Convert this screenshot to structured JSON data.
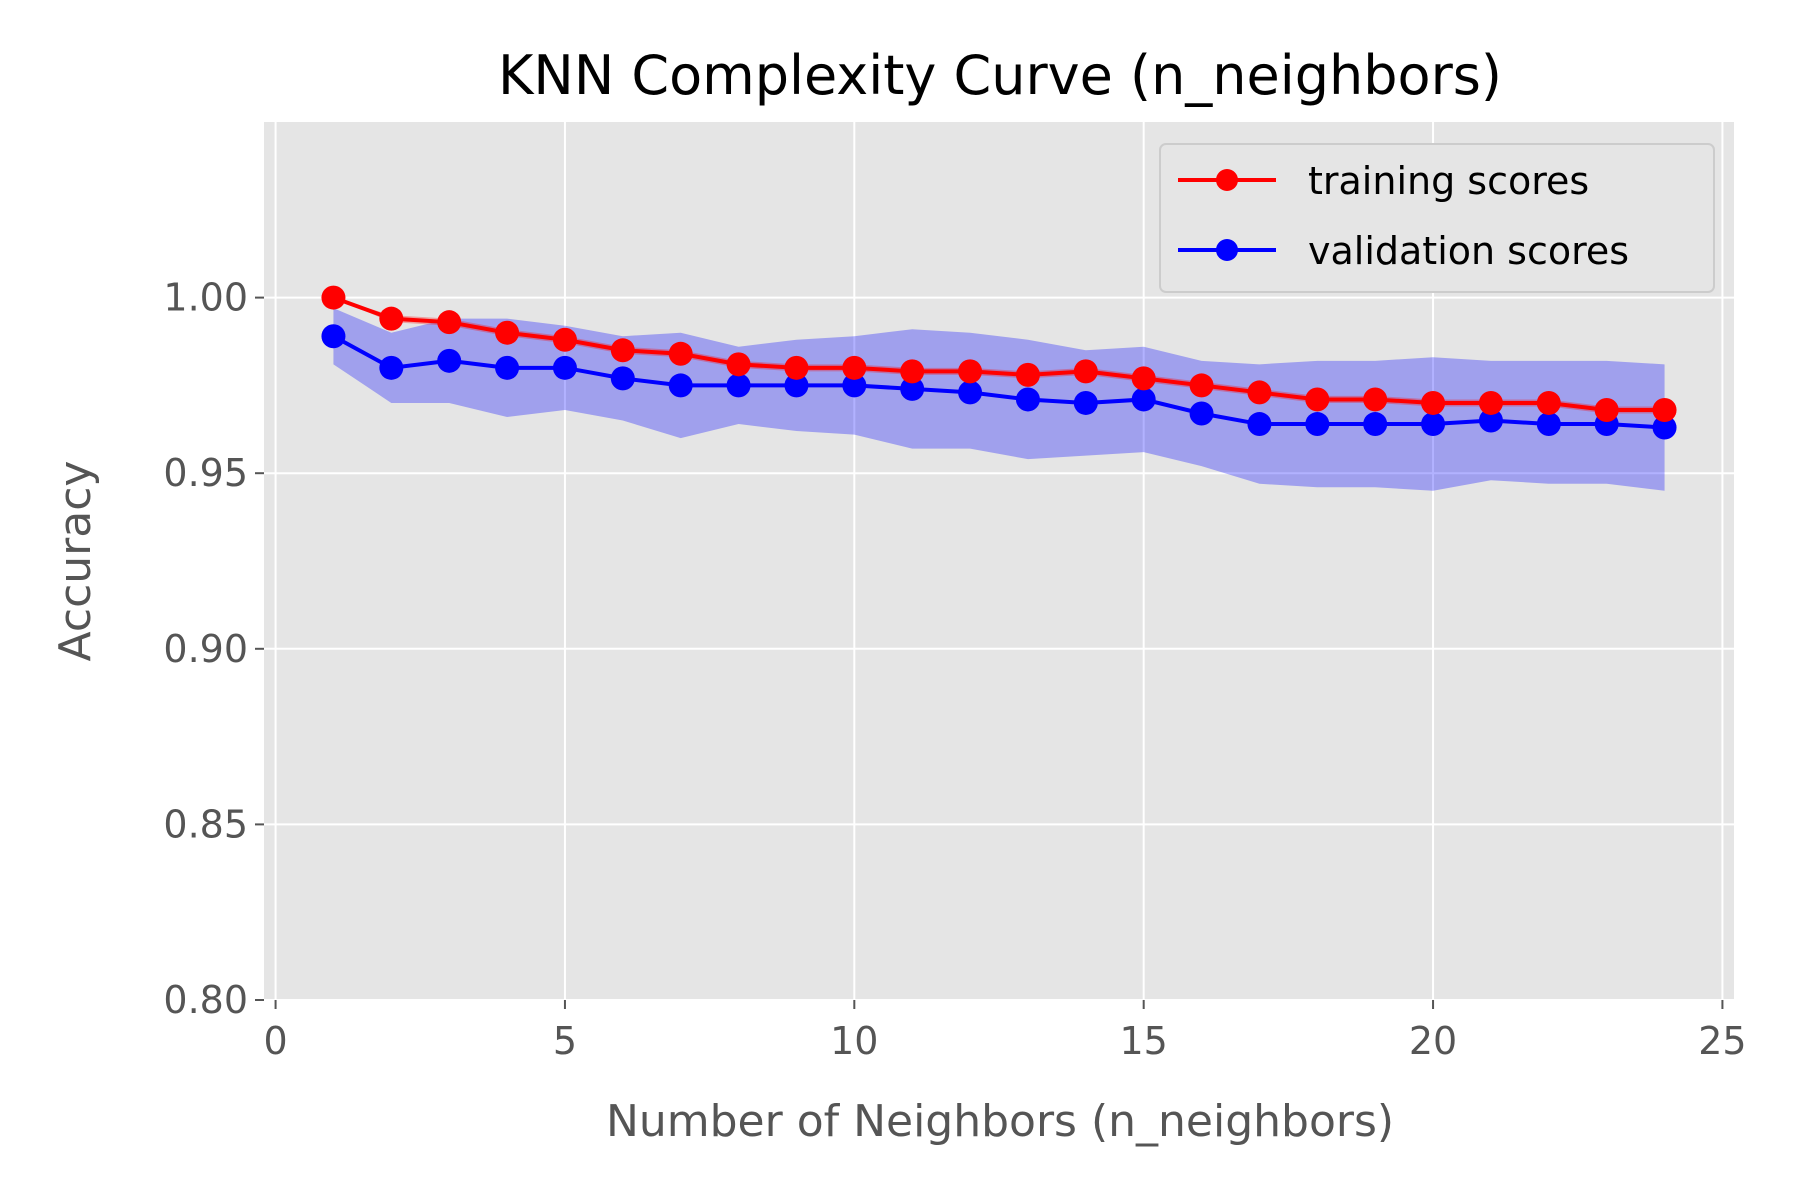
{
  "chart_data": {
    "type": "line",
    "title": "KNN Complexity Curve (n_neighbors)",
    "xlabel": "Number of Neighbors (n_neighbors)",
    "ylabel": "Accuracy",
    "xlim": [
      -0.2,
      25.2
    ],
    "ylim": [
      0.8,
      1.05
    ],
    "xticks": [
      0,
      5,
      10,
      15,
      20,
      25
    ],
    "xtick_labels": [
      "0",
      "5",
      "10",
      "15",
      "20",
      "25"
    ],
    "yticks": [
      0.8,
      0.85,
      0.9,
      0.95,
      1.0
    ],
    "ytick_labels": [
      "0.80",
      "0.85",
      "0.90",
      "0.95",
      "1.00"
    ],
    "grid": true,
    "legend_position": "top-right",
    "background": "#e5e5e5",
    "x": [
      1,
      2,
      3,
      4,
      5,
      6,
      7,
      8,
      9,
      10,
      11,
      12,
      13,
      14,
      15,
      16,
      17,
      18,
      19,
      20,
      21,
      22,
      23,
      24
    ],
    "series": [
      {
        "name": "training scores",
        "color": "#ff0000",
        "band_color": "#ff0000",
        "values": [
          1.0,
          0.994,
          0.993,
          0.99,
          0.988,
          0.985,
          0.984,
          0.981,
          0.98,
          0.98,
          0.979,
          0.979,
          0.978,
          0.979,
          0.977,
          0.975,
          0.973,
          0.971,
          0.971,
          0.97,
          0.97,
          0.97,
          0.968,
          0.968
        ],
        "lower": [
          1.0,
          0.993,
          0.992,
          0.989,
          0.987,
          0.984,
          0.983,
          0.98,
          0.979,
          0.979,
          0.978,
          0.978,
          0.977,
          0.978,
          0.976,
          0.974,
          0.972,
          0.97,
          0.97,
          0.969,
          0.969,
          0.969,
          0.967,
          0.967
        ],
        "upper": [
          1.0,
          0.995,
          0.994,
          0.991,
          0.989,
          0.986,
          0.985,
          0.982,
          0.981,
          0.981,
          0.98,
          0.98,
          0.979,
          0.98,
          0.978,
          0.976,
          0.974,
          0.972,
          0.972,
          0.971,
          0.971,
          0.971,
          0.969,
          0.969
        ]
      },
      {
        "name": "validation scores",
        "color": "#0000ff",
        "band_color": "#0000ff",
        "values": [
          0.989,
          0.98,
          0.982,
          0.98,
          0.98,
          0.977,
          0.975,
          0.975,
          0.975,
          0.975,
          0.974,
          0.973,
          0.971,
          0.97,
          0.971,
          0.967,
          0.964,
          0.964,
          0.964,
          0.964,
          0.965,
          0.964,
          0.964,
          0.963
        ],
        "lower": [
          0.981,
          0.97,
          0.97,
          0.966,
          0.968,
          0.965,
          0.96,
          0.964,
          0.962,
          0.961,
          0.957,
          0.957,
          0.954,
          0.955,
          0.956,
          0.952,
          0.947,
          0.946,
          0.946,
          0.945,
          0.948,
          0.947,
          0.947,
          0.945
        ],
        "upper": [
          0.997,
          0.99,
          0.994,
          0.994,
          0.992,
          0.989,
          0.99,
          0.986,
          0.988,
          0.989,
          0.991,
          0.99,
          0.988,
          0.985,
          0.986,
          0.982,
          0.981,
          0.982,
          0.982,
          0.983,
          0.982,
          0.982,
          0.982,
          0.981
        ]
      }
    ]
  }
}
